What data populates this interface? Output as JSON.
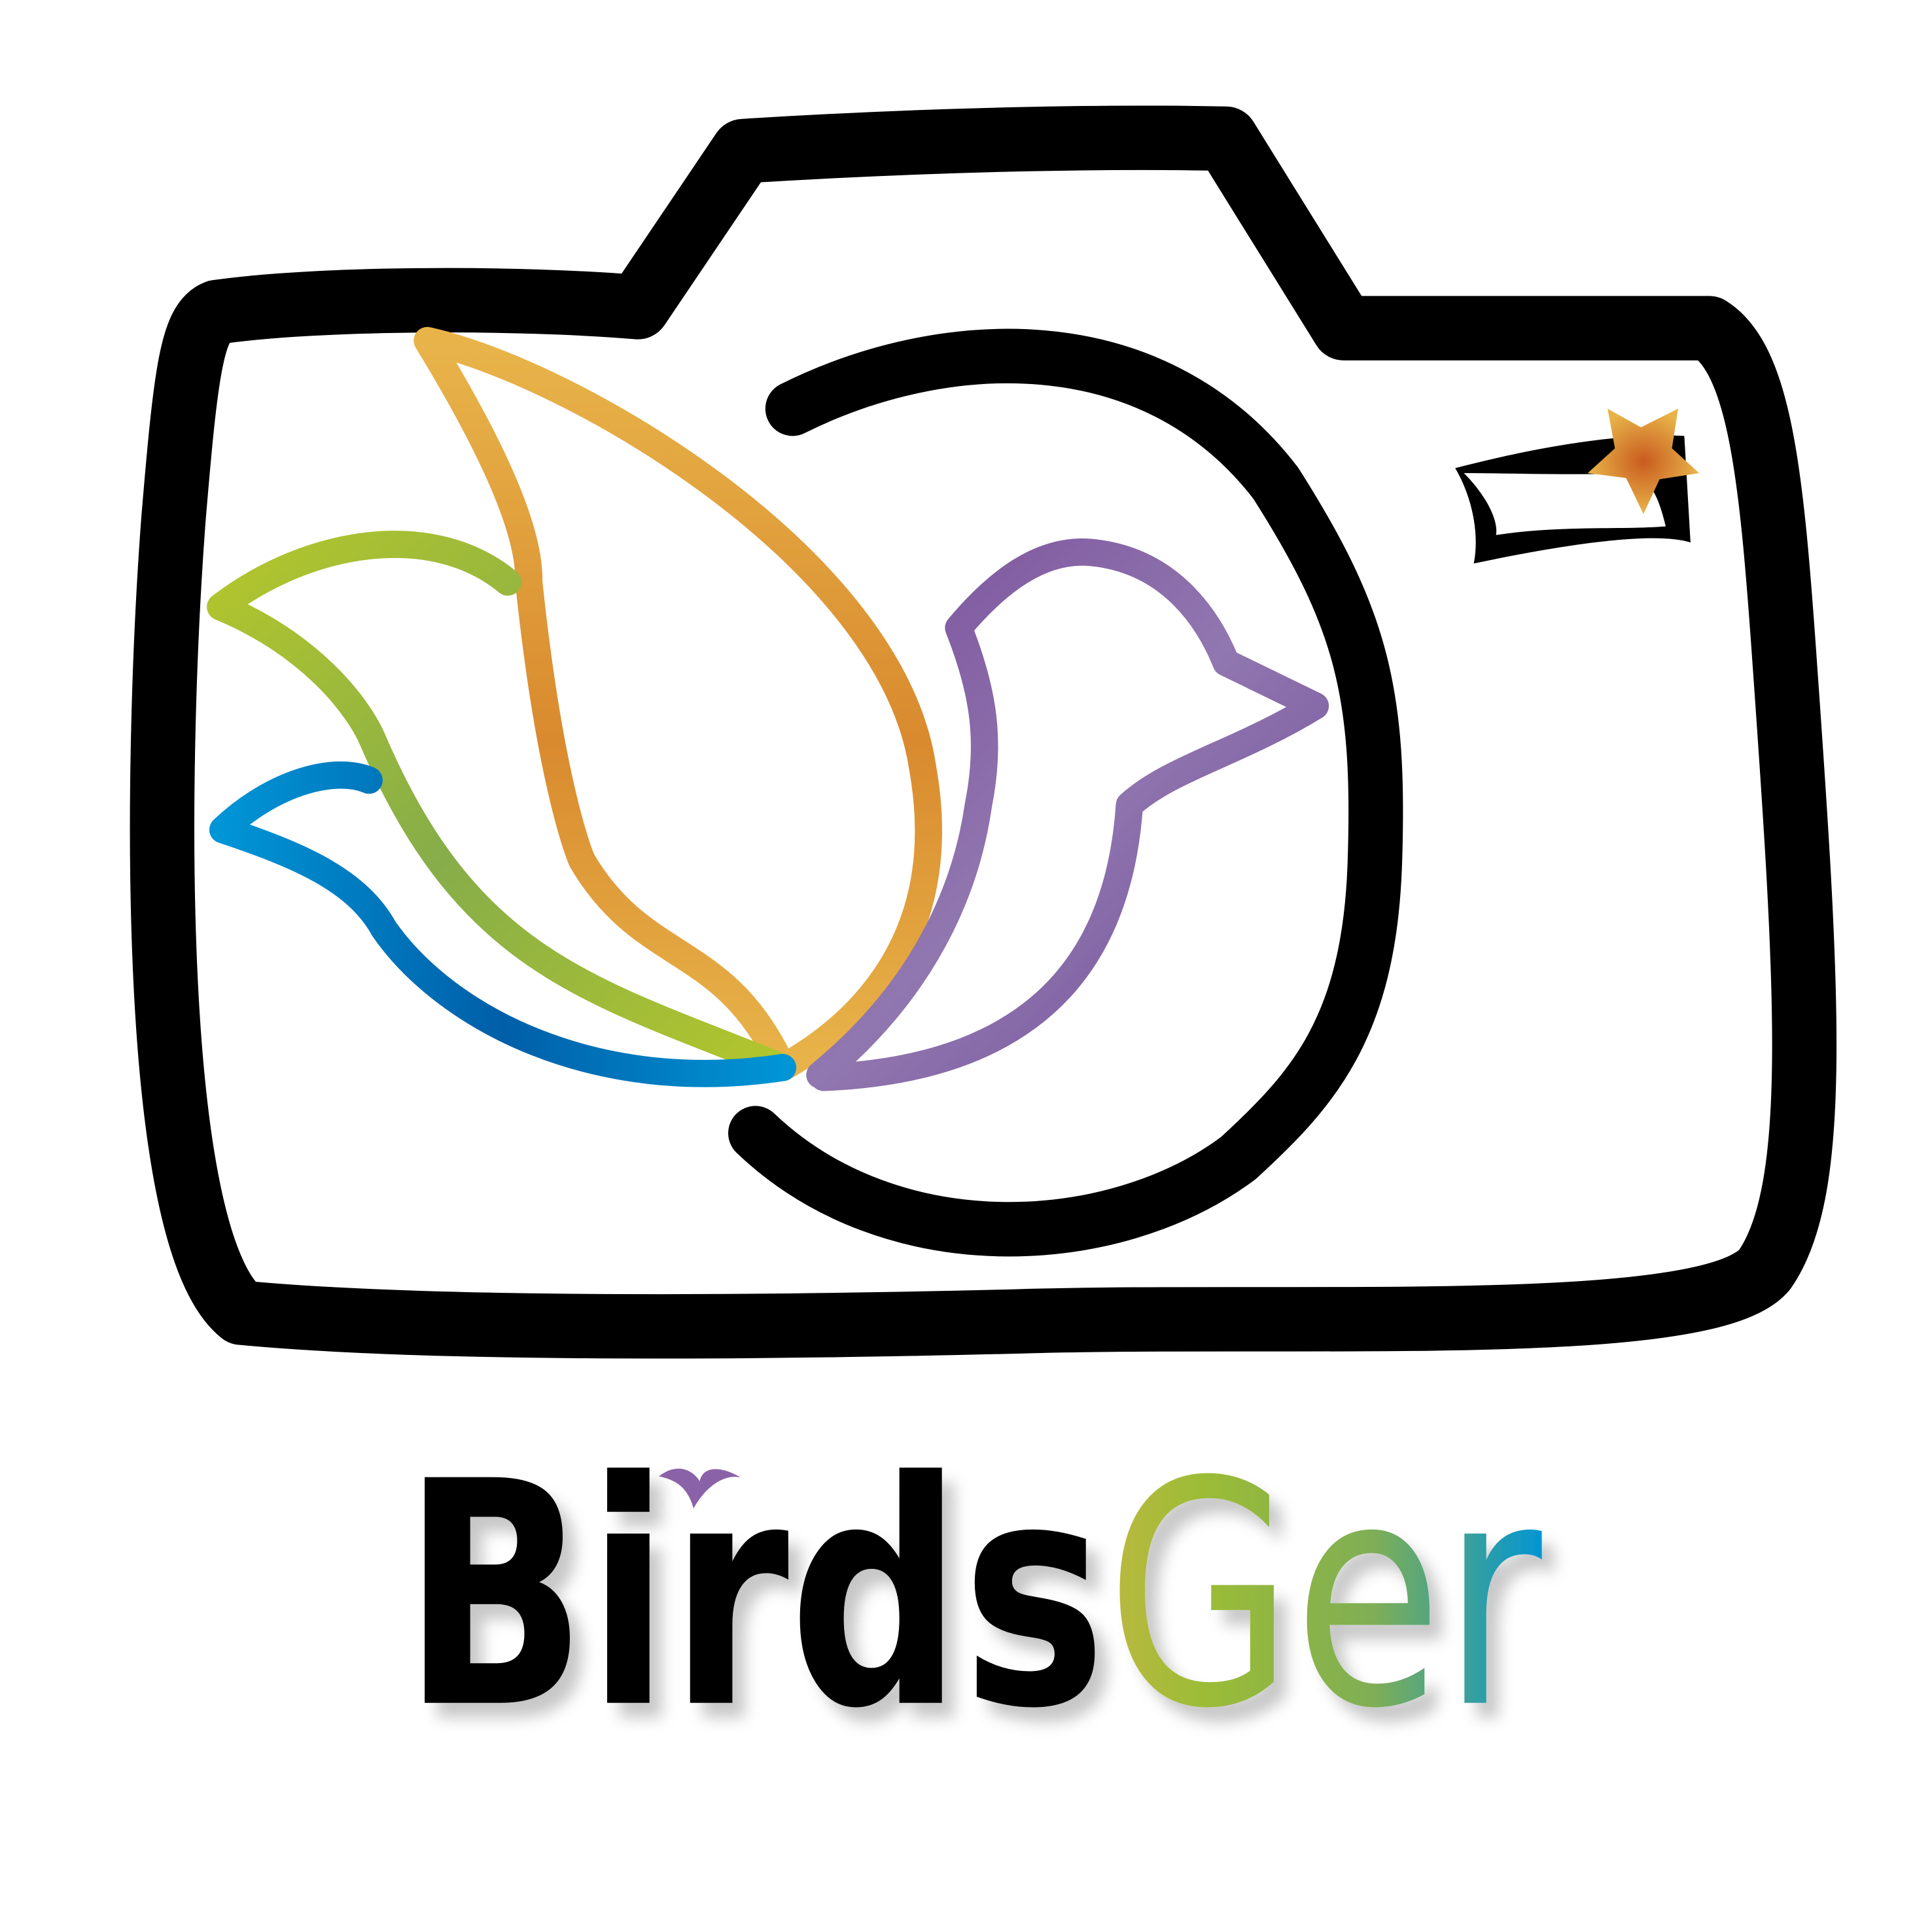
{
  "logo": {
    "wordmark": {
      "dark": "Birds",
      "colored": "Ger"
    }
  }
}
